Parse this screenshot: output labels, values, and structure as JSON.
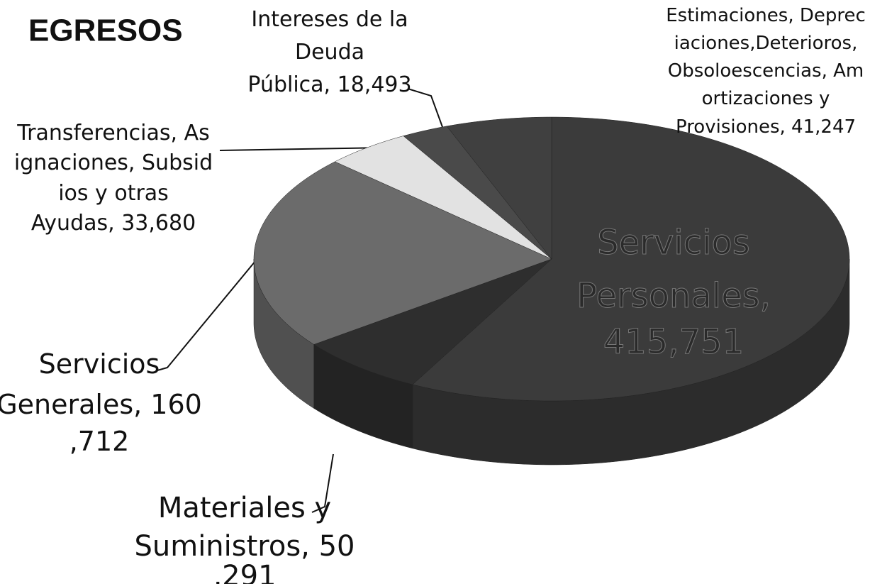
{
  "chart_data": {
    "type": "pie3d",
    "title": "EGRESOS",
    "values": [
      415751,
      50291,
      160712,
      33680,
      18493,
      41247
    ],
    "value_labels": [
      "Servicios Personales, 415,751",
      "Materiales y Suministros, 50,291",
      "Servicios Generales, 160,712",
      "Transferencias, Asignaciones, Subsidios y otras Ayudas, 33,680",
      "Intereses de la Deuda Pública, 18,493",
      "Estimaciones, Depreciaciones,Deterioros, Obsoloescencias, Amortizaciones y Provisiones, 41,247"
    ],
    "colors": [
      "#3b3b3b",
      "#2e2e2e",
      "#6b6b6b",
      "#e2e2e2",
      "#4a4a4a",
      "#404040"
    ]
  }
}
